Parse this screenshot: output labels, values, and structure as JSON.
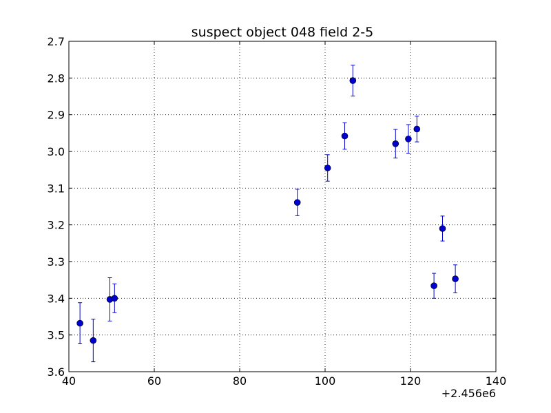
{
  "chart_data": {
    "type": "scatter",
    "title": "suspect object 048 field 2-5",
    "xlabel": "",
    "ylabel": "",
    "x_offset_label": "+2.456e6",
    "xlim": [
      40,
      140
    ],
    "ylim": [
      3.6,
      2.7
    ],
    "y_inverted": true,
    "grid": true,
    "x_ticks": [
      "40",
      "60",
      "80",
      "100",
      "120",
      "140"
    ],
    "y_ticks": [
      "2.7",
      "2.8",
      "2.9",
      "3.0",
      "3.1",
      "3.2",
      "3.3",
      "3.4",
      "3.5",
      "3.6"
    ],
    "series": [
      {
        "color": "#0000cc",
        "marker": "circle",
        "error_bars": true,
        "points": [
          {
            "x": 42.6,
            "y": 3.468,
            "err": 0.056
          },
          {
            "x": 45.7,
            "y": 3.515,
            "err": 0.058
          },
          {
            "x": 49.6,
            "y": 3.403,
            "err": 0.059
          },
          {
            "x": 50.7,
            "y": 3.4,
            "err": 0.039
          },
          {
            "x": 93.5,
            "y": 3.139,
            "err": 0.036
          },
          {
            "x": 100.6,
            "y": 3.045,
            "err": 0.036
          },
          {
            "x": 104.6,
            "y": 2.958,
            "err": 0.036
          },
          {
            "x": 106.5,
            "y": 2.807,
            "err": 0.042
          },
          {
            "x": 116.5,
            "y": 2.979,
            "err": 0.039
          },
          {
            "x": 119.5,
            "y": 2.966,
            "err": 0.039
          },
          {
            "x": 121.5,
            "y": 2.939,
            "err": 0.035
          },
          {
            "x": 125.5,
            "y": 3.366,
            "err": 0.034
          },
          {
            "x": 127.5,
            "y": 3.21,
            "err": 0.034
          },
          {
            "x": 130.5,
            "y": 3.347,
            "err": 0.038
          }
        ]
      }
    ]
  }
}
